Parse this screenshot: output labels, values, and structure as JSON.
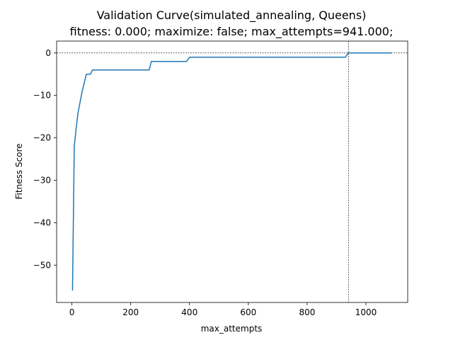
{
  "chart_data": {
    "type": "line",
    "title_line1": "Validation Curve(simulated_annealing, Queens)",
    "title_line2": "fitness: 0.000; maximize: false; max_attempts=941.000;",
    "xlabel": "max_attempts",
    "ylabel": "Fitness Score",
    "xlim": [
      -52,
      1142
    ],
    "ylim": [
      -58.8,
      2.8
    ],
    "x_ticks": [
      {
        "value": 0,
        "label": "0"
      },
      {
        "value": 200,
        "label": "200"
      },
      {
        "value": 400,
        "label": "400"
      },
      {
        "value": 600,
        "label": "600"
      },
      {
        "value": 800,
        "label": "800"
      },
      {
        "value": 1000,
        "label": "1000"
      }
    ],
    "y_ticks": [
      {
        "value": 0,
        "label": "0"
      },
      {
        "value": -10,
        "label": "−10"
      },
      {
        "value": -20,
        "label": "−20"
      },
      {
        "value": -30,
        "label": "−30"
      },
      {
        "value": -40,
        "label": "−40"
      },
      {
        "value": -50,
        "label": "−50"
      }
    ],
    "grid": false,
    "line_color": "#1f77b4",
    "reference_lines": {
      "horizontal_y": 0,
      "vertical_x": 941
    },
    "series": [
      {
        "x": [
          2,
          8,
          14,
          21,
          28,
          35,
          42,
          49,
          56,
          63,
          70,
          100,
          150,
          200,
          250,
          263,
          270,
          280,
          300,
          350,
          390,
          400,
          420,
          500,
          600,
          700,
          800,
          900,
          930,
          935,
          940,
          945,
          960,
          1000,
          1050,
          1088
        ],
        "y": [
          -56,
          -22,
          -18,
          -14,
          -11.5,
          -9,
          -7,
          -5,
          -5,
          -5,
          -4,
          -4,
          -4,
          -4,
          -4,
          -4,
          -2,
          -2,
          -2,
          -2,
          -2,
          -1,
          -1,
          -1,
          -1,
          -1,
          -1,
          -1,
          -1,
          -0.5,
          0,
          0,
          0,
          0,
          0,
          0
        ]
      }
    ]
  }
}
